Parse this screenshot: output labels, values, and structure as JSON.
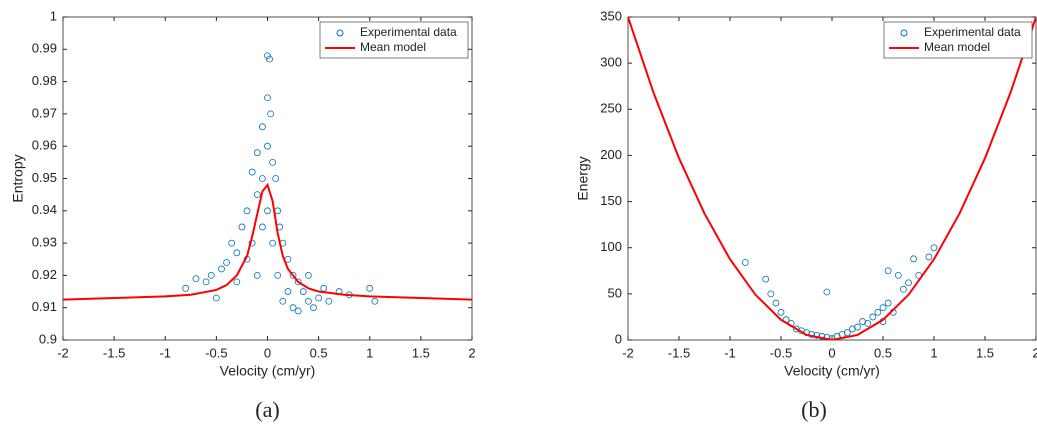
{
  "chart_data": [
    {
      "type": "scatter",
      "caption": "(a)",
      "xlabel": "Velocity (cm/yr)",
      "ylabel": "Entropy",
      "xlim": [
        -2,
        2
      ],
      "xticks": [
        -2,
        -1.5,
        -1,
        -0.5,
        0,
        0.5,
        1,
        1.5,
        2
      ],
      "ylim": [
        0.9,
        1
      ],
      "yticks": [
        0.9,
        0.91,
        0.92,
        0.93,
        0.94,
        0.95,
        0.96,
        0.97,
        0.98,
        0.99,
        1
      ],
      "legend": "upper right",
      "series": [
        {
          "name": "Experimental data",
          "color": "#0072bd",
          "mode": "markers",
          "x": [
            -0.8,
            -0.7,
            -0.6,
            -0.55,
            -0.5,
            -0.45,
            -0.4,
            -0.35,
            -0.3,
            -0.3,
            -0.25,
            -0.2,
            -0.2,
            -0.15,
            -0.15,
            -0.1,
            -0.1,
            -0.1,
            -0.05,
            -0.05,
            -0.05,
            0,
            0,
            0,
            0,
            0.02,
            0.03,
            0.05,
            0.05,
            0.08,
            0.1,
            0.1,
            0.12,
            0.15,
            0.15,
            0.2,
            0.2,
            0.25,
            0.25,
            0.3,
            0.3,
            0.35,
            0.4,
            0.4,
            0.45,
            0.5,
            0.55,
            0.6,
            0.7,
            0.8,
            1,
            1.05
          ],
          "values": [
            0.916,
            0.919,
            0.918,
            0.92,
            0.913,
            0.922,
            0.924,
            0.93,
            0.927,
            0.918,
            0.935,
            0.94,
            0.925,
            0.952,
            0.93,
            0.958,
            0.945,
            0.92,
            0.966,
            0.95,
            0.935,
            0.988,
            0.975,
            0.96,
            0.94,
            0.987,
            0.97,
            0.955,
            0.93,
            0.95,
            0.94,
            0.92,
            0.935,
            0.93,
            0.912,
            0.925,
            0.915,
            0.92,
            0.91,
            0.918,
            0.909,
            0.915,
            0.912,
            0.92,
            0.91,
            0.913,
            0.916,
            0.912,
            0.915,
            0.914,
            0.916,
            0.912
          ]
        },
        {
          "name": "Mean model",
          "color": "#ff0000",
          "mode": "line",
          "x": [
            -2,
            -1.5,
            -1,
            -0.75,
            -0.5,
            -0.4,
            -0.3,
            -0.2,
            -0.15,
            -0.1,
            -0.05,
            0,
            0.05,
            0.1,
            0.15,
            0.2,
            0.3,
            0.4,
            0.5,
            0.75,
            1,
            1.5,
            2
          ],
          "values": [
            0.9125,
            0.913,
            0.9135,
            0.914,
            0.9155,
            0.917,
            0.92,
            0.926,
            0.932,
            0.939,
            0.946,
            0.948,
            0.943,
            0.933,
            0.926,
            0.922,
            0.918,
            0.916,
            0.915,
            0.914,
            0.9135,
            0.913,
            0.9125
          ]
        }
      ]
    },
    {
      "type": "scatter",
      "caption": "(b)",
      "xlabel": "Velocity (cm/yr)",
      "ylabel": "Energy",
      "xlim": [
        -2,
        2
      ],
      "xticks": [
        -2,
        -1.5,
        -1,
        -0.5,
        0,
        0.5,
        1,
        1.5,
        2
      ],
      "ylim": [
        0,
        350
      ],
      "yticks": [
        0,
        50,
        100,
        150,
        200,
        250,
        300,
        350
      ],
      "legend": "upper right",
      "series": [
        {
          "name": "Experimental data",
          "color": "#0072bd",
          "mode": "markers",
          "x": [
            -0.85,
            -0.65,
            -0.6,
            -0.55,
            -0.5,
            -0.45,
            -0.4,
            -0.35,
            -0.3,
            -0.25,
            -0.2,
            -0.15,
            -0.1,
            -0.05,
            0,
            -0.05,
            0.05,
            0.1,
            0.15,
            0.2,
            0.25,
            0.3,
            0.35,
            0.4,
            0.45,
            0.5,
            0.5,
            0.55,
            0.55,
            0.6,
            0.65,
            0.7,
            0.75,
            0.8,
            0.85,
            1,
            0.95
          ],
          "values": [
            84,
            66,
            50,
            40,
            30,
            22,
            18,
            12,
            10,
            8,
            6,
            5,
            4,
            3,
            2,
            52,
            4,
            6,
            8,
            12,
            14,
            20,
            18,
            25,
            30,
            35,
            20,
            75,
            40,
            30,
            70,
            55,
            62,
            88,
            70,
            100,
            90
          ]
        },
        {
          "name": "Mean model",
          "color": "#ff0000",
          "mode": "line",
          "x": [
            -2,
            -1.75,
            -1.5,
            -1.25,
            -1,
            -0.75,
            -0.5,
            -0.25,
            0,
            0.25,
            0.5,
            0.75,
            1,
            1.25,
            1.5,
            1.75,
            2
          ],
          "values": [
            350,
            268,
            197,
            137,
            87.5,
            49,
            21.9,
            5.5,
            0,
            5.5,
            21.9,
            49,
            87.5,
            137,
            197,
            268,
            350
          ]
        }
      ]
    }
  ]
}
